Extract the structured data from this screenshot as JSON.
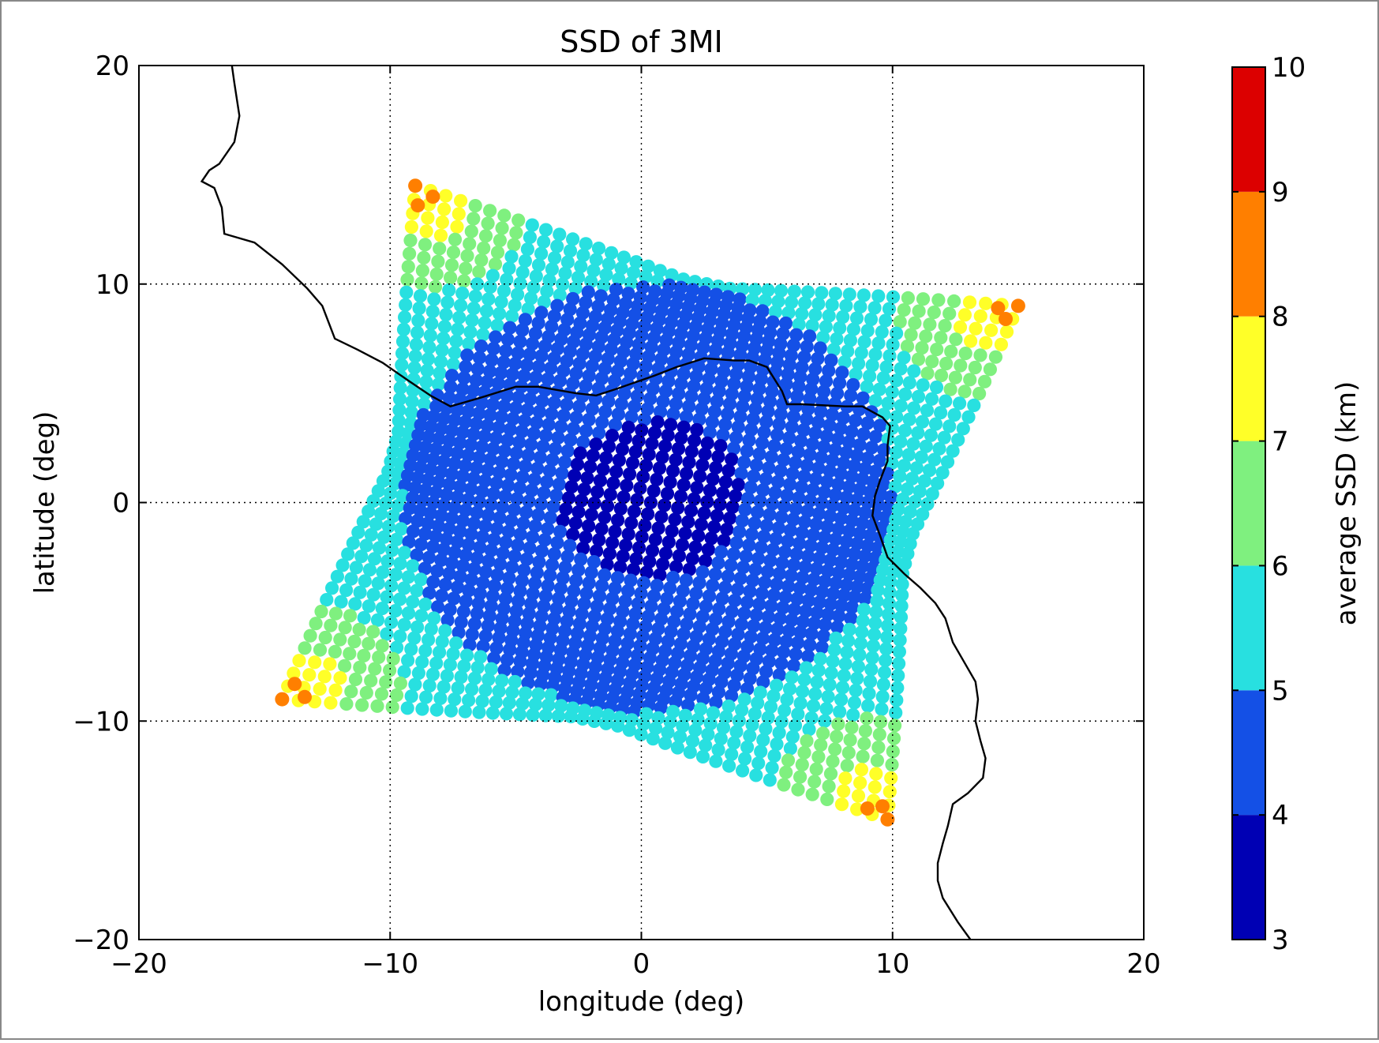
{
  "chart_data": {
    "type": "scatter",
    "title": "SSD of 3MI",
    "xlabel": "longitude (deg)",
    "ylabel": "latitude (deg)",
    "xlim": [
      -20,
      20
    ],
    "ylim": [
      -20,
      20
    ],
    "x_ticks": [
      -20,
      -10,
      0,
      10,
      20
    ],
    "y_ticks": [
      -20,
      -10,
      0,
      10,
      20
    ],
    "x_tick_labels": [
      "−20",
      "−10",
      "0",
      "10",
      "20"
    ],
    "y_tick_labels": [
      "−20",
      "−10",
      "0",
      "10",
      "20"
    ],
    "grid": true,
    "grid_style": "dotted",
    "colorbar": {
      "label": "average SSD (km)",
      "bounds": [
        3,
        4,
        5,
        6,
        7,
        8,
        9,
        10
      ],
      "tick_labels": [
        "3",
        "4",
        "5",
        "6",
        "7",
        "8",
        "9",
        "10"
      ],
      "colors": [
        "#0000b4",
        "#1450e6",
        "#28e0e0",
        "#7ff07f",
        "#ffff28",
        "#ff7f00",
        "#dc0000"
      ],
      "position": "right"
    },
    "footprint": {
      "description_shape": "warped square with concave sides",
      "corners": [
        [
          -9,
          14.5
        ],
        [
          15,
          9
        ],
        [
          9.8,
          -14.5
        ],
        [
          -14.3,
          -9
        ]
      ],
      "center": [
        0.3,
        0
      ],
      "zones": [
        {
          "ssd_range": [
            3,
            4
          ],
          "shape": "ellipse",
          "center": [
            0.4,
            0.2
          ],
          "radii": [
            3.7,
            3.6
          ]
        },
        {
          "ssd_range": [
            4,
            5
          ],
          "shape": "ellipse",
          "center": [
            0.3,
            0.2
          ],
          "radii": [
            9.8,
            9.8
          ]
        },
        {
          "ssd_range": [
            5,
            6
          ],
          "shape": "remaining-footprint"
        },
        {
          "ssd_range": [
            6,
            7
          ],
          "shape": "corner-regions"
        },
        {
          "ssd_range": [
            7,
            8
          ],
          "shape": "corner-tips"
        },
        {
          "ssd_range": [
            8,
            9
          ],
          "shape": "corner-points",
          "points": [
            [
              -9,
              14.5
            ],
            [
              -8.3,
              14
            ],
            [
              -8.9,
              13.6
            ],
            [
              14.2,
              8.9
            ],
            [
              15,
              9
            ],
            [
              14.5,
              8.4
            ],
            [
              -14.3,
              -9
            ],
            [
              -13.8,
              -8.3
            ],
            [
              -13.4,
              -8.9
            ],
            [
              9.6,
              -13.9
            ],
            [
              9.8,
              -14.5
            ],
            [
              9,
              -14
            ]
          ]
        }
      ]
    },
    "coastline": [
      [
        -16.3,
        20
      ],
      [
        -16.2,
        19.2
      ],
      [
        -16.0,
        17.7
      ],
      [
        -16.2,
        16.5
      ],
      [
        -16.8,
        15.5
      ],
      [
        -17.2,
        15.2
      ],
      [
        -17.5,
        14.7
      ],
      [
        -17.0,
        14.4
      ],
      [
        -16.7,
        13.5
      ],
      [
        -16.6,
        12.3
      ],
      [
        -15.4,
        11.9
      ],
      [
        -14.3,
        10.9
      ],
      [
        -13.3,
        9.8
      ],
      [
        -12.7,
        9.0
      ],
      [
        -12.2,
        7.5
      ],
      [
        -11.3,
        7.0
      ],
      [
        -10.3,
        6.4
      ],
      [
        -9.3,
        5.6
      ],
      [
        -8.4,
        4.9
      ],
      [
        -7.6,
        4.4
      ],
      [
        -6.4,
        4.8
      ],
      [
        -5.0,
        5.3
      ],
      [
        -4.1,
        5.3
      ],
      [
        -2.6,
        5.0
      ],
      [
        -1.8,
        4.9
      ],
      [
        -1.0,
        5.2
      ],
      [
        0.5,
        5.8
      ],
      [
        1.4,
        6.2
      ],
      [
        2.5,
        6.6
      ],
      [
        3.7,
        6.5
      ],
      [
        4.3,
        6.5
      ],
      [
        5.0,
        6.2
      ],
      [
        5.6,
        5.1
      ],
      [
        5.8,
        4.5
      ],
      [
        6.4,
        4.5
      ],
      [
        8.1,
        4.4
      ],
      [
        8.8,
        4.4
      ],
      [
        9.6,
        3.9
      ],
      [
        9.9,
        3.5
      ],
      [
        9.8,
        2.6
      ],
      [
        9.8,
        1.9
      ],
      [
        9.5,
        1.0
      ],
      [
        9.3,
        0.3
      ],
      [
        9.2,
        -0.6
      ],
      [
        9.5,
        -1.5
      ],
      [
        9.8,
        -2.5
      ],
      [
        10.5,
        -3.3
      ],
      [
        11.1,
        -3.9
      ],
      [
        11.7,
        -4.6
      ],
      [
        12.1,
        -5.3
      ],
      [
        12.4,
        -6.4
      ],
      [
        12.8,
        -7.2
      ],
      [
        13.3,
        -8.2
      ],
      [
        13.4,
        -9.0
      ],
      [
        13.3,
        -10.0
      ],
      [
        13.5,
        -10.9
      ],
      [
        13.7,
        -11.7
      ],
      [
        13.6,
        -12.6
      ],
      [
        13.0,
        -13.3
      ],
      [
        12.4,
        -13.8
      ],
      [
        12.2,
        -14.8
      ],
      [
        12.0,
        -15.6
      ],
      [
        11.8,
        -16.5
      ],
      [
        11.8,
        -17.3
      ],
      [
        12.0,
        -18.1
      ],
      [
        12.6,
        -19.2
      ],
      [
        13.1,
        -20
      ]
    ]
  }
}
